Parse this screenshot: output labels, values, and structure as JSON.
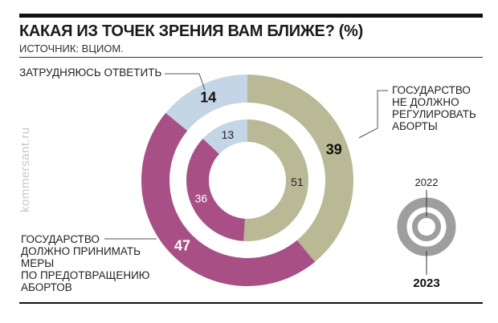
{
  "header": {
    "title": "КАКАЯ ИЗ ТОЧЕК ЗРЕНИЯ ВАМ БЛИЖЕ? (%)",
    "source": "ИСТОЧНИК: ВЦИОМ."
  },
  "watermark": "kommersant.ru",
  "chart_data": {
    "type": "pie",
    "title": "КАКАЯ ИЗ ТОЧЕК ЗРЕНИЯ ВАМ БЛИЖЕ? (%)",
    "categories": [
      "ГОСУДАРСТВО НЕ ДОЛЖНО РЕГУЛИРОВАТЬ АБОРТЫ",
      "ГОСУДАРСТВО ДОЛЖНО ПРИНИМАТЬ МЕРЫ ПО ПРЕДОТВРАЩЕНИЮ АБОРТОВ",
      "ЗАТРУДНЯЮСЬ ОТВЕТИТЬ"
    ],
    "colors": [
      "#b9b995",
      "#a85086",
      "#c4d5e5"
    ],
    "series": [
      {
        "name": "2023",
        "ring": "outer",
        "values": [
          39,
          47,
          14
        ]
      },
      {
        "name": "2022",
        "ring": "inner",
        "values": [
          51,
          36,
          13
        ]
      }
    ],
    "legend": {
      "outer": "2023",
      "inner": "2022",
      "placement": "right"
    }
  },
  "labels": {
    "not_regulate": [
      "ГОСУДАРСТВО",
      "НЕ ДОЛЖНО",
      "РЕГУЛИРОВАТЬ",
      "АБОРТЫ"
    ],
    "prevent": [
      "ГОСУДАРСТВО",
      "ДОЛЖНО ПРИНИМАТЬ",
      "МЕРЫ",
      "ПО ПРЕДОТВРАЩЕНИЮ",
      "АБОРТОВ"
    ],
    "undecided": "ЗАТРУДНЯЮСЬ ОТВЕТИТЬ"
  }
}
